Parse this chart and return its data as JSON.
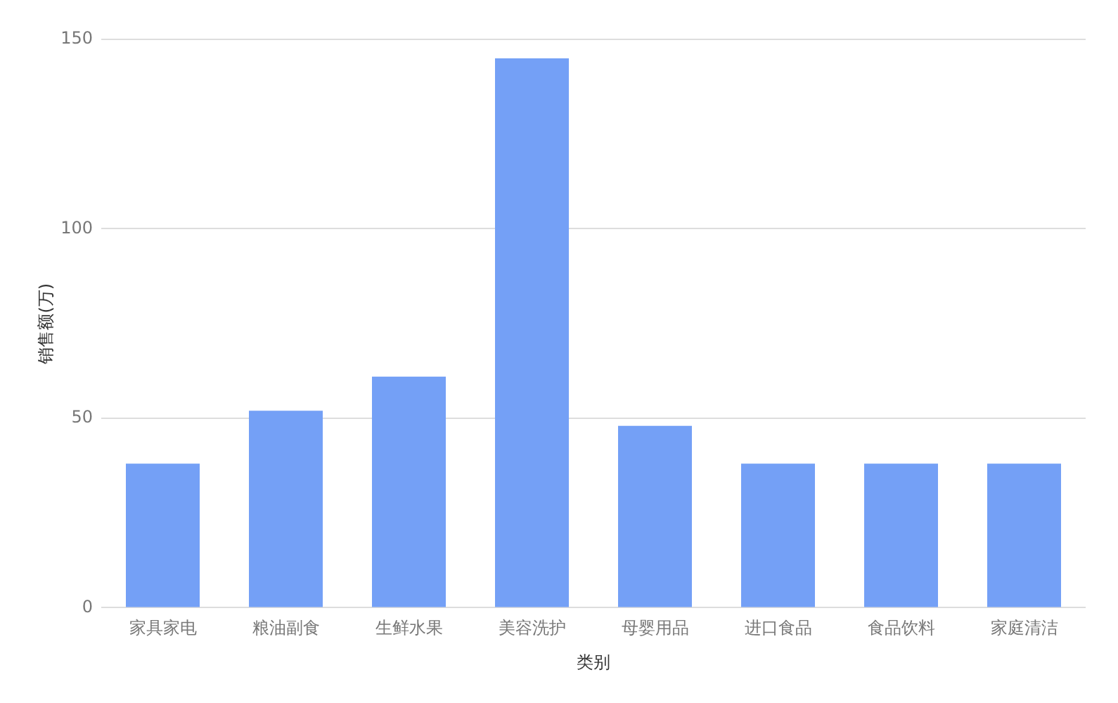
{
  "chart_data": {
    "type": "bar",
    "xlabel": "类别",
    "ylabel": "销售额(万)",
    "categories": [
      "家具家电",
      "粮油副食",
      "生鲜水果",
      "美容洗护",
      "母婴用品",
      "进口食品",
      "食品饮料",
      "家庭清洁"
    ],
    "values": [
      38,
      52,
      61,
      145,
      48,
      38,
      38,
      38
    ],
    "color": "#74a0f6",
    "ylim": [
      0,
      150
    ],
    "yticks": [
      0,
      50,
      100,
      150
    ],
    "grid": "y"
  }
}
